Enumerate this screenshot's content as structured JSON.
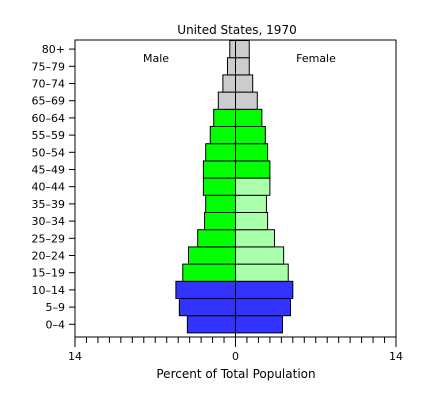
{
  "chart_data": {
    "type": "bar",
    "title": "United States, 1970",
    "xlabel": "Percent of Total Population",
    "ylabel": "",
    "xlim": [
      -14,
      14
    ],
    "x_ticks": [
      {
        "value": -14,
        "label": "14"
      },
      {
        "value": 0,
        "label": "0"
      },
      {
        "value": 14,
        "label": "14"
      }
    ],
    "legend_labels": {
      "male": "Male",
      "female": "Female"
    },
    "categories": [
      "0–4",
      "5–9",
      "10–14",
      "15–19",
      "20–24",
      "25–29",
      "30–34",
      "35–39",
      "40–44",
      "45–49",
      "50–54",
      "55–59",
      "60–64",
      "65–69",
      "70–74",
      "75–79",
      "80+"
    ],
    "series": [
      {
        "name": "Male",
        "values": [
          4.2,
          4.9,
          5.2,
          4.6,
          4.1,
          3.3,
          2.7,
          2.6,
          2.8,
          2.8,
          2.6,
          2.2,
          1.9,
          1.5,
          1.1,
          0.7,
          0.5
        ]
      },
      {
        "name": "Female",
        "values": [
          4.1,
          4.8,
          5.0,
          4.6,
          4.2,
          3.4,
          2.8,
          2.7,
          3.0,
          3.0,
          2.8,
          2.6,
          2.3,
          1.9,
          1.5,
          1.2,
          1.2
        ]
      }
    ],
    "bar_colors": [
      "#3333ff",
      "#3333ff",
      "#3333ff",
      "#00ff00",
      "#00ff00",
      "#00ff00",
      "#00ff00",
      "#00ff00",
      "#00ff00",
      "#00ff00",
      "#00ff00",
      "#00ff00",
      "#00ff00",
      "#cccccc",
      "#cccccc",
      "#cccccc",
      "#cccccc"
    ],
    "female_bar_colors": [
      "#3333ff",
      "#3333ff",
      "#3333ff",
      "#aaffaa",
      "#aaffaa",
      "#aaffaa",
      "#aaffaa",
      "#aaffaa",
      "#aaffaa",
      "#00ff00",
      "#00ff00",
      "#00ff00",
      "#00ff00",
      "#cccccc",
      "#cccccc",
      "#cccccc",
      "#cccccc"
    ],
    "grid": false
  }
}
